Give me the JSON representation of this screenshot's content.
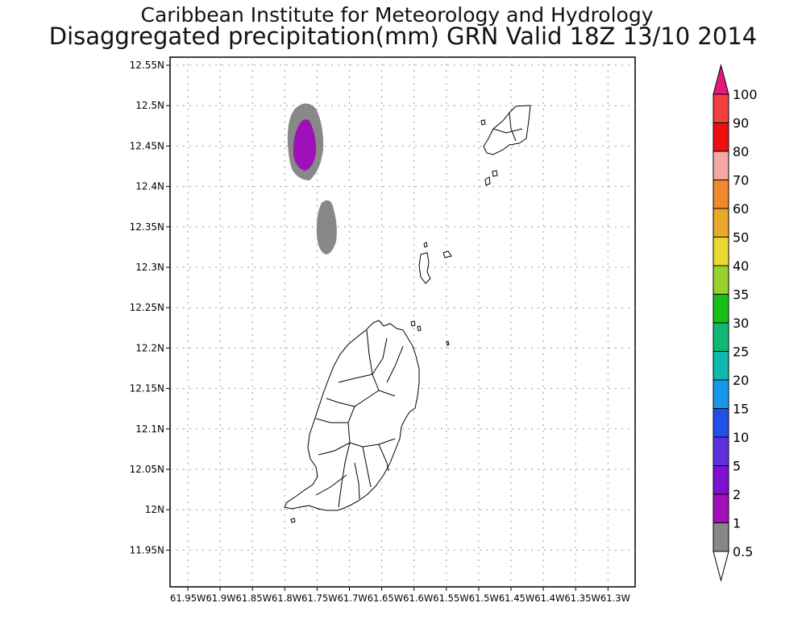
{
  "header": {
    "institute": "Caribbean Institute for Meteorology and Hydrology",
    "product": "Disaggregated precipitation(mm) GRN Valid 18Z 13/10 2014"
  },
  "map": {
    "lat_ticks": [
      "12.55N",
      "12.5N",
      "12.45N",
      "12.4N",
      "12.35N",
      "12.3N",
      "12.25N",
      "12.2N",
      "12.15N",
      "12.1N",
      "12.05N",
      "12N",
      "11.95N"
    ],
    "lon_ticks": [
      "61.95W",
      "61.9W",
      "61.85W",
      "61.8W",
      "61.75W",
      "61.7W",
      "61.65W",
      "61.6W",
      "61.55W",
      "61.5W",
      "61.45W",
      "61.4W",
      "61.35W",
      "61.3W"
    ],
    "grid": true,
    "land_outline_color": "#000000"
  },
  "colorbar": {
    "labels": [
      "100",
      "90",
      "80",
      "70",
      "60",
      "50",
      "40",
      "35",
      "30",
      "25",
      "20",
      "15",
      "10",
      "5",
      "2",
      "1",
      "0.5"
    ],
    "colors": [
      "#e8187a",
      "#f04040",
      "#ee1010",
      "#f4a8a8",
      "#f08830",
      "#e8a828",
      "#e8d830",
      "#98d030",
      "#18c018",
      "#10b878",
      "#10b8b0",
      "#1898e8",
      "#2050e8",
      "#6030e0",
      "#8010d0",
      "#a010b8",
      "#888888"
    ]
  },
  "precip_cells": [
    {
      "name": "north-cell",
      "levels": [
        "0.5",
        "1"
      ],
      "colors": [
        "#888888",
        "#a010b8"
      ]
    },
    {
      "name": "south-cell",
      "levels": [
        "0.5"
      ],
      "colors": [
        "#888888"
      ]
    }
  ]
}
